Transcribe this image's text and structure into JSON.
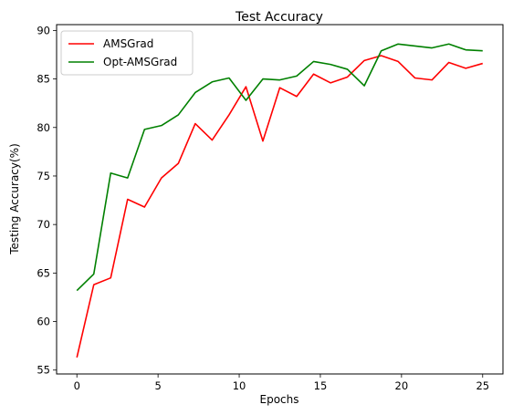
{
  "chart_data": {
    "type": "line",
    "title": "Test Accuracy",
    "xlabel": "Epochs",
    "ylabel": "Testing Accuracy(%)",
    "xlim": [
      -1.25,
      26.25
    ],
    "ylim": [
      54.6,
      90.6
    ],
    "xticks": [
      0,
      5,
      10,
      15,
      20,
      25
    ],
    "yticks": [
      55,
      60,
      65,
      70,
      75,
      80,
      85,
      90
    ],
    "grid": false,
    "legend_position": "top-left",
    "x": [
      0,
      1.0417,
      2.0833,
      3.125,
      4.1667,
      5.2083,
      6.25,
      7.2917,
      8.3333,
      9.375,
      10.4167,
      11.4583,
      12.5,
      13.5417,
      14.5833,
      15.625,
      16.6667,
      17.7083,
      18.75,
      19.7917,
      20.8333,
      21.875,
      22.9167,
      23.9583,
      25
    ],
    "series": [
      {
        "name": "AMSGrad",
        "color": "#ff0000",
        "values": [
          56.3,
          63.8,
          64.5,
          72.6,
          71.8,
          74.8,
          76.3,
          80.4,
          78.7,
          81.3,
          84.2,
          78.6,
          84.1,
          83.2,
          85.5,
          84.6,
          85.2,
          86.9,
          87.4,
          86.8,
          85.1,
          84.9,
          86.7,
          86.1,
          86.6
        ]
      },
      {
        "name": "Opt-AMSGrad",
        "color": "#008000",
        "values": [
          63.2,
          64.9,
          75.3,
          74.8,
          79.8,
          80.2,
          81.3,
          83.6,
          84.7,
          85.1,
          82.8,
          85.0,
          84.9,
          85.3,
          86.8,
          86.5,
          86.0,
          84.3,
          87.9,
          88.6,
          88.4,
          88.2,
          88.6,
          88.0,
          87.9
        ]
      }
    ]
  }
}
